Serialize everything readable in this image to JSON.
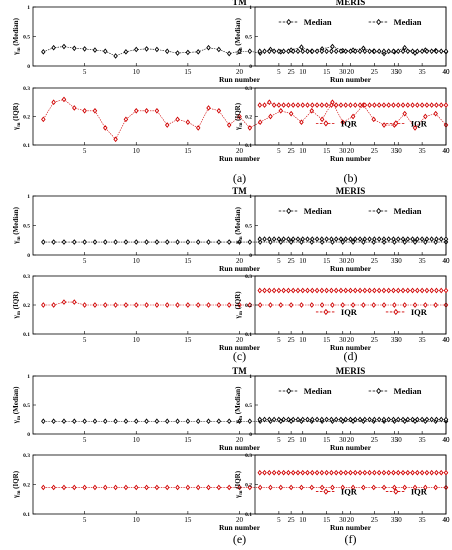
{
  "chart_data": [
    {
      "type": "line",
      "title": "TM",
      "xlabel": "Run number",
      "ylabel_main": "γ",
      "ylabel_sub": "m",
      "ylabel_suffix": "(Median)",
      "legend": "Median",
      "legend_position": "top-right",
      "color": "#000000",
      "ylim": [
        0,
        1
      ],
      "yticks": [
        "0",
        "0.5",
        "1"
      ],
      "xlim": [
        0,
        40
      ],
      "xticks": [
        "5",
        "10",
        "15",
        "20",
        "25",
        "30",
        "35",
        "40"
      ],
      "x": [
        1,
        2,
        3,
        4,
        5,
        6,
        7,
        8,
        9,
        10,
        11,
        12,
        13,
        14,
        15,
        16,
        17,
        18,
        19,
        20,
        21,
        22,
        23,
        24,
        25,
        26,
        27,
        28,
        29,
        30,
        31,
        32,
        33,
        34,
        35,
        36,
        37,
        38,
        39,
        40
      ],
      "y": [
        0.24,
        0.31,
        0.33,
        0.3,
        0.29,
        0.27,
        0.25,
        0.17,
        0.24,
        0.28,
        0.29,
        0.28,
        0.25,
        0.22,
        0.23,
        0.24,
        0.31,
        0.28,
        0.21,
        0.25,
        0.25,
        0.22,
        0.28,
        0.24,
        0.27,
        0.32,
        0.25,
        0.29,
        0.33,
        0.26,
        0.27,
        0.3,
        0.25,
        0.21,
        0.24,
        0.31,
        0.22,
        0.27,
        0.26,
        0.24
      ]
    },
    {
      "type": "line",
      "title": "MERIS",
      "xlabel": "Run number",
      "ylabel_main": "γ",
      "ylabel_sub": "m",
      "ylabel_suffix": "(Median)",
      "legend": "Median",
      "legend_position": "top-right",
      "color": "#000000",
      "ylim": [
        0,
        1
      ],
      "yticks": [
        "0",
        "0.5",
        "1"
      ],
      "xlim": [
        0,
        40
      ],
      "xticks": [
        "5",
        "10",
        "15",
        "20",
        "25",
        "30",
        "35",
        "40"
      ],
      "x": [
        1,
        2,
        3,
        4,
        5,
        6,
        7,
        8,
        9,
        10,
        11,
        12,
        13,
        14,
        15,
        16,
        17,
        18,
        19,
        20,
        21,
        22,
        23,
        24,
        25,
        26,
        27,
        28,
        29,
        30,
        31,
        32,
        33,
        34,
        35,
        36,
        37,
        38,
        39,
        40
      ],
      "y": [
        0.25,
        0.25,
        0.25,
        0.25,
        0.25,
        0.25,
        0.25,
        0.25,
        0.25,
        0.25,
        0.25,
        0.25,
        0.25,
        0.25,
        0.25,
        0.25,
        0.25,
        0.25,
        0.25,
        0.25,
        0.25,
        0.25,
        0.25,
        0.25,
        0.25,
        0.25,
        0.25,
        0.25,
        0.25,
        0.25,
        0.25,
        0.25,
        0.25,
        0.25,
        0.25,
        0.25,
        0.25,
        0.25,
        0.25,
        0.25
      ]
    },
    {
      "type": "line",
      "title": "",
      "xlabel": "Run number",
      "ylabel_main": "γ",
      "ylabel_sub": "m",
      "ylabel_suffix": "(IQR)",
      "legend": "IQR",
      "legend_position": "right",
      "color": "#d00000",
      "ylim": [
        0.1,
        0.3
      ],
      "yticks": [
        "0.1",
        "0.2",
        "0.3"
      ],
      "xlim": [
        0,
        40
      ],
      "xticks": [
        "5",
        "10",
        "15",
        "20",
        "25",
        "30",
        "35",
        "40"
      ],
      "x": [
        1,
        2,
        3,
        4,
        5,
        6,
        7,
        8,
        9,
        10,
        11,
        12,
        13,
        14,
        15,
        16,
        17,
        18,
        19,
        20,
        21,
        22,
        23,
        24,
        25,
        26,
        27,
        28,
        29,
        30,
        31,
        32,
        33,
        34,
        35,
        36,
        37,
        38,
        39,
        40
      ],
      "y": [
        0.19,
        0.25,
        0.26,
        0.23,
        0.22,
        0.22,
        0.16,
        0.12,
        0.19,
        0.22,
        0.22,
        0.22,
        0.17,
        0.19,
        0.18,
        0.16,
        0.23,
        0.22,
        0.17,
        0.2,
        0.16,
        0.18,
        0.2,
        0.22,
        0.21,
        0.18,
        0.22,
        0.19,
        0.25,
        0.18,
        0.2,
        0.24,
        0.19,
        0.17,
        0.17,
        0.21,
        0.16,
        0.2,
        0.21,
        0.17
      ]
    },
    {
      "type": "line",
      "title": "",
      "xlabel": "Run number",
      "ylabel_main": "γ",
      "ylabel_sub": "m",
      "ylabel_suffix": "(IQR)",
      "legend": "IQR",
      "legend_position": "right",
      "color": "#d00000",
      "ylim": [
        0.1,
        0.3
      ],
      "yticks": [
        "0.1",
        "0.2",
        "0.3"
      ],
      "xlim": [
        0,
        40
      ],
      "xticks": [
        "5",
        "10",
        "15",
        "20",
        "25",
        "30",
        "35",
        "40"
      ],
      "x": [
        1,
        2,
        3,
        4,
        5,
        6,
        7,
        8,
        9,
        10,
        11,
        12,
        13,
        14,
        15,
        16,
        17,
        18,
        19,
        20,
        21,
        22,
        23,
        24,
        25,
        26,
        27,
        28,
        29,
        30,
        31,
        32,
        33,
        34,
        35,
        36,
        37,
        38,
        39,
        40
      ],
      "y": [
        0.24,
        0.24,
        0.25,
        0.24,
        0.24,
        0.24,
        0.24,
        0.24,
        0.24,
        0.24,
        0.24,
        0.24,
        0.24,
        0.24,
        0.24,
        0.24,
        0.24,
        0.24,
        0.24,
        0.24,
        0.24,
        0.24,
        0.24,
        0.24,
        0.24,
        0.24,
        0.24,
        0.24,
        0.24,
        0.24,
        0.24,
        0.24,
        0.24,
        0.24,
        0.24,
        0.24,
        0.24,
        0.24,
        0.24,
        0.24
      ]
    },
    {
      "type": "line",
      "title": "TM",
      "xlabel": "Run number",
      "ylabel_main": "γ",
      "ylabel_sub": "m",
      "ylabel_suffix": "(Median)",
      "legend": "Median",
      "legend_position": "top-right",
      "color": "#000000",
      "ylim": [
        0,
        1
      ],
      "yticks": [
        "0",
        "0.5",
        "1"
      ],
      "xlim": [
        0,
        40
      ],
      "xticks": [
        "5",
        "10",
        "15",
        "20",
        "25",
        "30",
        "35",
        "40"
      ],
      "x": [
        1,
        2,
        3,
        4,
        5,
        6,
        7,
        8,
        9,
        10,
        11,
        12,
        13,
        14,
        15,
        16,
        17,
        18,
        19,
        20,
        21,
        22,
        23,
        24,
        25,
        26,
        27,
        28,
        29,
        30,
        31,
        32,
        33,
        34,
        35,
        36,
        37,
        38,
        39,
        40
      ],
      "y": [
        0.22,
        0.22,
        0.22,
        0.22,
        0.22,
        0.22,
        0.22,
        0.22,
        0.22,
        0.22,
        0.22,
        0.22,
        0.22,
        0.22,
        0.22,
        0.22,
        0.22,
        0.22,
        0.22,
        0.22,
        0.22,
        0.22,
        0.22,
        0.22,
        0.22,
        0.22,
        0.22,
        0.22,
        0.22,
        0.22,
        0.22,
        0.22,
        0.22,
        0.22,
        0.22,
        0.22,
        0.22,
        0.22,
        0.22,
        0.22
      ]
    },
    {
      "type": "line",
      "title": "MERIS",
      "xlabel": "Run number",
      "ylabel_main": "γ",
      "ylabel_sub": "m",
      "ylabel_suffix": "(Median)",
      "legend": "Median",
      "legend_position": "top-right",
      "color": "#000000",
      "ylim": [
        0,
        1
      ],
      "yticks": [
        "0",
        "0.5",
        "1"
      ],
      "xlim": [
        0,
        40
      ],
      "xticks": [
        "5",
        "10",
        "15",
        "20",
        "25",
        "30",
        "35",
        "40"
      ],
      "x": [
        1,
        2,
        3,
        4,
        5,
        6,
        7,
        8,
        9,
        10,
        11,
        12,
        13,
        14,
        15,
        16,
        17,
        18,
        19,
        20,
        21,
        22,
        23,
        24,
        25,
        26,
        27,
        28,
        29,
        30,
        31,
        32,
        33,
        34,
        35,
        36,
        37,
        38,
        39,
        40
      ],
      "y": [
        0.27,
        0.27,
        0.27,
        0.27,
        0.27,
        0.27,
        0.27,
        0.27,
        0.27,
        0.27,
        0.27,
        0.27,
        0.27,
        0.27,
        0.27,
        0.27,
        0.27,
        0.27,
        0.27,
        0.27,
        0.27,
        0.27,
        0.27,
        0.27,
        0.27,
        0.27,
        0.27,
        0.27,
        0.27,
        0.27,
        0.27,
        0.27,
        0.27,
        0.27,
        0.27,
        0.27,
        0.27,
        0.27,
        0.27,
        0.27
      ]
    },
    {
      "type": "line",
      "title": "",
      "xlabel": "Run number",
      "ylabel_main": "γ",
      "ylabel_sub": "m",
      "ylabel_suffix": "(IQR)",
      "legend": "IQR",
      "legend_position": "right",
      "color": "#d00000",
      "ylim": [
        0.1,
        0.3
      ],
      "yticks": [
        "0.1",
        "0.2",
        "0.3"
      ],
      "xlim": [
        0,
        40
      ],
      "xticks": [
        "5",
        "10",
        "15",
        "20",
        "25",
        "30",
        "35",
        "40"
      ],
      "x": [
        1,
        2,
        3,
        4,
        5,
        6,
        7,
        8,
        9,
        10,
        11,
        12,
        13,
        14,
        15,
        16,
        17,
        18,
        19,
        20,
        21,
        22,
        23,
        24,
        25,
        26,
        27,
        28,
        29,
        30,
        31,
        32,
        33,
        34,
        35,
        36,
        37,
        38,
        39,
        40
      ],
      "y": [
        0.2,
        0.2,
        0.21,
        0.21,
        0.2,
        0.2,
        0.2,
        0.2,
        0.2,
        0.2,
        0.2,
        0.2,
        0.2,
        0.2,
        0.2,
        0.2,
        0.2,
        0.2,
        0.2,
        0.2,
        0.2,
        0.2,
        0.2,
        0.2,
        0.2,
        0.2,
        0.2,
        0.2,
        0.2,
        0.2,
        0.2,
        0.2,
        0.2,
        0.2,
        0.2,
        0.2,
        0.2,
        0.2,
        0.2,
        0.2
      ]
    },
    {
      "type": "line",
      "title": "",
      "xlabel": "Run number",
      "ylabel_main": "γ",
      "ylabel_sub": "m",
      "ylabel_suffix": "(IQR)",
      "legend": "IQR",
      "legend_position": "right",
      "color": "#d00000",
      "ylim": [
        0.1,
        0.3
      ],
      "yticks": [
        "0.1",
        "0.2",
        "0.3"
      ],
      "xlim": [
        0,
        40
      ],
      "xticks": [
        "5",
        "10",
        "15",
        "20",
        "25",
        "30",
        "35",
        "40"
      ],
      "x": [
        1,
        2,
        3,
        4,
        5,
        6,
        7,
        8,
        9,
        10,
        11,
        12,
        13,
        14,
        15,
        16,
        17,
        18,
        19,
        20,
        21,
        22,
        23,
        24,
        25,
        26,
        27,
        28,
        29,
        30,
        31,
        32,
        33,
        34,
        35,
        36,
        37,
        38,
        39,
        40
      ],
      "y": [
        0.25,
        0.25,
        0.25,
        0.25,
        0.25,
        0.25,
        0.25,
        0.25,
        0.25,
        0.25,
        0.25,
        0.25,
        0.25,
        0.25,
        0.25,
        0.25,
        0.25,
        0.25,
        0.25,
        0.25,
        0.25,
        0.25,
        0.25,
        0.25,
        0.25,
        0.25,
        0.25,
        0.25,
        0.25,
        0.25,
        0.25,
        0.25,
        0.25,
        0.25,
        0.25,
        0.25,
        0.25,
        0.25,
        0.25,
        0.25
      ]
    },
    {
      "type": "line",
      "title": "TM",
      "xlabel": "Run number",
      "ylabel_main": "γ",
      "ylabel_sub": "m",
      "ylabel_suffix": "(Median)",
      "legend": "Median",
      "legend_position": "top-right",
      "color": "#000000",
      "ylim": [
        0,
        1
      ],
      "yticks": [
        "0",
        "0.5",
        "1"
      ],
      "xlim": [
        0,
        40
      ],
      "xticks": [
        "5",
        "10",
        "15",
        "20",
        "25",
        "30",
        "35",
        "40"
      ],
      "x": [
        1,
        2,
        3,
        4,
        5,
        6,
        7,
        8,
        9,
        10,
        11,
        12,
        13,
        14,
        15,
        16,
        17,
        18,
        19,
        20,
        21,
        22,
        23,
        24,
        25,
        26,
        27,
        28,
        29,
        30,
        31,
        32,
        33,
        34,
        35,
        36,
        37,
        38,
        39,
        40
      ],
      "y": [
        0.22,
        0.22,
        0.22,
        0.22,
        0.22,
        0.22,
        0.22,
        0.22,
        0.22,
        0.22,
        0.22,
        0.22,
        0.22,
        0.22,
        0.22,
        0.22,
        0.22,
        0.22,
        0.22,
        0.22,
        0.22,
        0.22,
        0.22,
        0.22,
        0.22,
        0.22,
        0.22,
        0.22,
        0.22,
        0.22,
        0.22,
        0.22,
        0.22,
        0.22,
        0.22,
        0.22,
        0.22,
        0.22,
        0.22,
        0.22
      ]
    },
    {
      "type": "line",
      "title": "MERIS",
      "xlabel": "Run number",
      "ylabel_main": "γ",
      "ylabel_sub": "m",
      "ylabel_suffix": "(Median)",
      "legend": "Median",
      "legend_position": "top-right",
      "color": "#000000",
      "ylim": [
        0,
        1
      ],
      "yticks": [
        "0",
        "0.5",
        "1"
      ],
      "xlim": [
        0,
        40
      ],
      "xticks": [
        "5",
        "10",
        "15",
        "20",
        "25",
        "30",
        "35",
        "40"
      ],
      "x": [
        1,
        2,
        3,
        4,
        5,
        6,
        7,
        8,
        9,
        10,
        11,
        12,
        13,
        14,
        15,
        16,
        17,
        18,
        19,
        20,
        21,
        22,
        23,
        24,
        25,
        26,
        27,
        28,
        29,
        30,
        31,
        32,
        33,
        34,
        35,
        36,
        37,
        38,
        39,
        40
      ],
      "y": [
        0.25,
        0.25,
        0.25,
        0.25,
        0.25,
        0.25,
        0.25,
        0.25,
        0.25,
        0.25,
        0.25,
        0.25,
        0.25,
        0.25,
        0.25,
        0.25,
        0.25,
        0.25,
        0.25,
        0.25,
        0.25,
        0.25,
        0.25,
        0.25,
        0.25,
        0.25,
        0.25,
        0.25,
        0.25,
        0.25,
        0.25,
        0.25,
        0.25,
        0.25,
        0.25,
        0.25,
        0.25,
        0.25,
        0.25,
        0.25
      ]
    },
    {
      "type": "line",
      "title": "",
      "xlabel": "Run number",
      "ylabel_main": "γ",
      "ylabel_sub": "m",
      "ylabel_suffix": "(IQR)",
      "legend": "IQR",
      "legend_position": "right",
      "color": "#d00000",
      "ylim": [
        0.1,
        0.3
      ],
      "yticks": [
        "0.1",
        "0.2",
        "0.3"
      ],
      "xlim": [
        0,
        40
      ],
      "xticks": [
        "5",
        "10",
        "15",
        "20",
        "25",
        "30",
        "35",
        "40"
      ],
      "x": [
        1,
        2,
        3,
        4,
        5,
        6,
        7,
        8,
        9,
        10,
        11,
        12,
        13,
        14,
        15,
        16,
        17,
        18,
        19,
        20,
        21,
        22,
        23,
        24,
        25,
        26,
        27,
        28,
        29,
        30,
        31,
        32,
        33,
        34,
        35,
        36,
        37,
        38,
        39,
        40
      ],
      "y": [
        0.19,
        0.19,
        0.19,
        0.19,
        0.19,
        0.19,
        0.19,
        0.19,
        0.19,
        0.19,
        0.19,
        0.19,
        0.19,
        0.19,
        0.19,
        0.19,
        0.19,
        0.19,
        0.19,
        0.19,
        0.19,
        0.19,
        0.19,
        0.19,
        0.19,
        0.19,
        0.19,
        0.19,
        0.19,
        0.19,
        0.19,
        0.19,
        0.19,
        0.19,
        0.19,
        0.19,
        0.19,
        0.19,
        0.19,
        0.19
      ]
    },
    {
      "type": "line",
      "title": "",
      "xlabel": "Run number",
      "ylabel_main": "γ",
      "ylabel_sub": "m",
      "ylabel_suffix": "(IQR)",
      "legend": "IQR",
      "legend_position": "right",
      "color": "#d00000",
      "ylim": [
        0.1,
        0.3
      ],
      "yticks": [
        "0.1",
        "0.2",
        "0.3"
      ],
      "xlim": [
        0,
        40
      ],
      "xticks": [
        "5",
        "10",
        "15",
        "20",
        "25",
        "30",
        "35",
        "40"
      ],
      "x": [
        1,
        2,
        3,
        4,
        5,
        6,
        7,
        8,
        9,
        10,
        11,
        12,
        13,
        14,
        15,
        16,
        17,
        18,
        19,
        20,
        21,
        22,
        23,
        24,
        25,
        26,
        27,
        28,
        29,
        30,
        31,
        32,
        33,
        34,
        35,
        36,
        37,
        38,
        39,
        40
      ],
      "y": [
        0.24,
        0.24,
        0.24,
        0.24,
        0.24,
        0.24,
        0.24,
        0.24,
        0.24,
        0.24,
        0.24,
        0.24,
        0.24,
        0.24,
        0.24,
        0.24,
        0.24,
        0.24,
        0.24,
        0.24,
        0.24,
        0.24,
        0.24,
        0.24,
        0.24,
        0.24,
        0.24,
        0.24,
        0.24,
        0.24,
        0.24,
        0.24,
        0.24,
        0.24,
        0.24,
        0.24,
        0.24,
        0.24,
        0.24,
        0.24
      ]
    }
  ],
  "captions": [
    "(a)",
    "(b)",
    "(c)",
    "(d)",
    "(e)",
    "(f)"
  ]
}
